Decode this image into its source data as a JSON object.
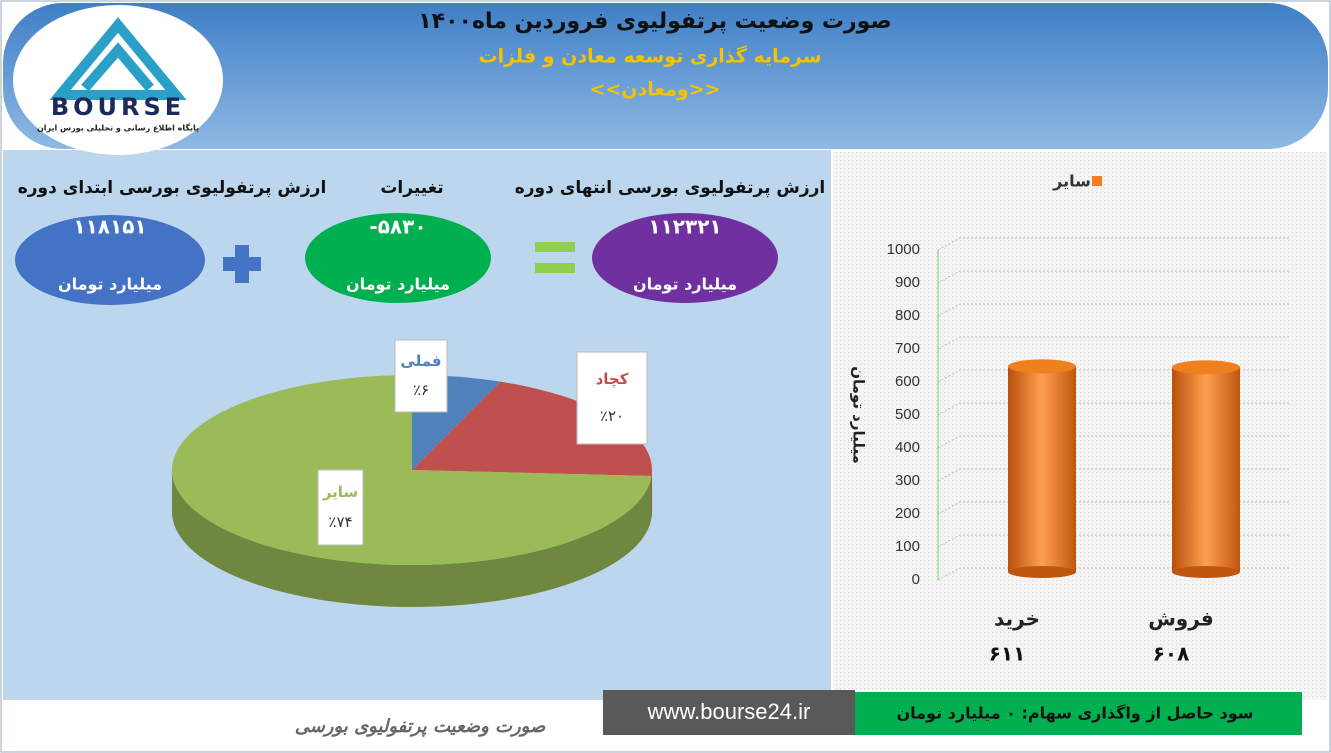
{
  "header": {
    "title": "صورت وضعیت پرتفولیوی فروردین ماه۱۴۰۰",
    "subtitle": "سرمایه گذاری توسعه معادن و فلزات",
    "symbol": "<<ومعادن>>"
  },
  "logo": {
    "name": "BOURSE",
    "tagline": "پایگاه اطلاع رسانی و تحلیلی بورس ایران"
  },
  "summary": [
    {
      "label": "ارزش پرتفولیوی بورسی ابتدای دوره",
      "value": "۱۱۸۱۵۱",
      "unit": "میلیارد تومان"
    },
    {
      "label": "تغییرات",
      "value": "-۵۸۳۰",
      "unit": "میلیارد تومان"
    },
    {
      "label": "ارزش پرتفولیوی بورسی انتهای دوره",
      "value": "۱۱۲۳۲۱",
      "unit": "میلیارد تومان"
    }
  ],
  "chart_data": [
    {
      "type": "pie",
      "categories": [
        "فملی",
        "کچاد",
        "سایر"
      ],
      "values": [
        6,
        20,
        74
      ],
      "value_labels": [
        "٪۶",
        "٪۲۰",
        "٪۷۴"
      ],
      "colors": [
        "#4f81bd",
        "#c0504d",
        "#9bbb59"
      ]
    },
    {
      "type": "bar",
      "categories": [
        "خرید",
        "فروش"
      ],
      "series": [
        {
          "name": "سایر",
          "color": "#f07f1e",
          "values": [
            611,
            608
          ],
          "value_labels": [
            "۶۱۱",
            "۶۰۸"
          ]
        }
      ],
      "ylabel": "میلیارد تومان",
      "ylim": [
        0,
        1000
      ],
      "yticks": [
        0,
        100,
        200,
        300,
        400,
        500,
        600,
        700,
        800,
        900,
        1000
      ],
      "grid": true
    }
  ],
  "footer": {
    "profit": "سود حاصل از واگذاری سهام: ۰ میلیارد تومان",
    "website": "www.bourse24.ir",
    "caption": "صورت وضعیت پرتفولیوی بورسی"
  }
}
